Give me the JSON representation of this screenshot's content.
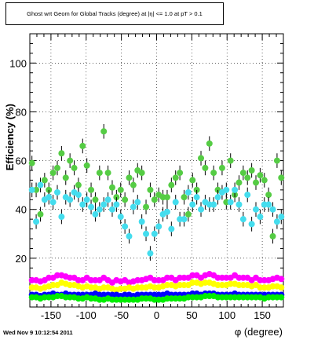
{
  "chart_data": {
    "type": "scatter",
    "title": "Ghost wrt Geom for Global Tracks (degree) at |η| <= 1.0 at pT > 0.1",
    "xlabel": "φ (degree)",
    "ylabel": "Efficiency (%)",
    "xlim": [
      -180,
      180
    ],
    "ylim": [
      0,
      112
    ],
    "x_ticks": [
      -150,
      -100,
      -50,
      0,
      50,
      100,
      150
    ],
    "x_tick_labels": [
      "-150",
      "-100",
      "-50",
      "0",
      "50",
      "100",
      "150"
    ],
    "y_ticks": [
      20,
      40,
      60,
      80,
      100
    ],
    "y_tick_labels": [
      "20",
      "40",
      "60",
      "80",
      "100"
    ],
    "grid": true,
    "series": [
      {
        "color": "#55cc44",
        "marker": "circle",
        "x": [
          -177,
          -171,
          -165,
          -159,
          -153,
          -147,
          -141,
          -135,
          -129,
          -123,
          -117,
          -111,
          -105,
          -99,
          -93,
          -87,
          -81,
          -75,
          -69,
          -63,
          -57,
          -51,
          -45,
          -39,
          -33,
          -27,
          -21,
          -15,
          -9,
          -3,
          3,
          9,
          15,
          21,
          27,
          33,
          39,
          45,
          51,
          57,
          63,
          69,
          75,
          81,
          87,
          93,
          99,
          105,
          111,
          117,
          123,
          129,
          135,
          141,
          147,
          153,
          159,
          165,
          171,
          177
        ],
        "y": [
          59,
          48,
          38,
          52,
          48,
          55,
          57,
          63,
          53,
          60,
          57,
          50,
          66,
          58,
          48,
          44,
          55,
          72,
          55,
          49,
          45,
          48,
          44,
          53,
          50,
          56,
          55,
          41,
          48,
          44,
          46,
          45,
          45,
          50,
          53,
          55,
          45,
          38,
          52,
          48,
          61,
          57,
          67,
          55,
          48,
          57,
          43,
          60,
          46,
          51,
          55,
          53,
          56,
          51,
          54,
          52,
          46,
          29,
          60,
          53
        ],
        "yerr": [
          3,
          3,
          3,
          3,
          3,
          3,
          3,
          3,
          3,
          3,
          3,
          3,
          3,
          3,
          3,
          3,
          3,
          3,
          3,
          3,
          3,
          3,
          3,
          3,
          3,
          3,
          3,
          3,
          3,
          3,
          3,
          3,
          3,
          3,
          3,
          3,
          3,
          3,
          3,
          3,
          3,
          3,
          3,
          3,
          3,
          3,
          3,
          3,
          3,
          3,
          3,
          3,
          3,
          3,
          3,
          3,
          3,
          3,
          3,
          3
        ]
      },
      {
        "color": "#44ddee",
        "marker": "circle",
        "x": [
          -177,
          -171,
          -165,
          -159,
          -153,
          -147,
          -141,
          -135,
          -129,
          -123,
          -117,
          -111,
          -105,
          -99,
          -93,
          -87,
          -81,
          -75,
          -69,
          -63,
          -57,
          -51,
          -45,
          -39,
          -33,
          -27,
          -21,
          -15,
          -9,
          -3,
          3,
          9,
          15,
          21,
          27,
          33,
          39,
          45,
          51,
          57,
          63,
          69,
          75,
          81,
          87,
          93,
          99,
          105,
          111,
          117,
          123,
          129,
          135,
          141,
          147,
          153,
          159,
          165,
          171,
          177
        ],
        "y": [
          48,
          35,
          50,
          44,
          45,
          43,
          47,
          37,
          45,
          44,
          47,
          46,
          42,
          44,
          41,
          38,
          40,
          42,
          44,
          40,
          42,
          37,
          33,
          29,
          41,
          43,
          35,
          30,
          22,
          30,
          33,
          38,
          39,
          32,
          43,
          36,
          36,
          47,
          42,
          45,
          40,
          43,
          42,
          42,
          45,
          47,
          48,
          43,
          48,
          42,
          36,
          46,
          34,
          40,
          37,
          42,
          42,
          40,
          35,
          37
        ],
        "yerr": [
          3,
          3,
          3,
          3,
          3,
          3,
          3,
          3,
          3,
          3,
          3,
          3,
          3,
          3,
          3,
          3,
          3,
          3,
          3,
          3,
          3,
          3,
          3,
          3,
          3,
          3,
          3,
          3,
          3,
          3,
          3,
          3,
          3,
          3,
          3,
          3,
          3,
          3,
          3,
          3,
          3,
          3,
          3,
          3,
          3,
          3,
          3,
          3,
          3,
          3,
          3,
          3,
          3,
          3,
          3,
          3,
          3,
          3,
          3,
          3
        ]
      },
      {
        "color": "#ff00ff",
        "marker": "circle",
        "x": [
          -177,
          -171,
          -165,
          -159,
          -153,
          -147,
          -141,
          -135,
          -129,
          -123,
          -117,
          -111,
          -105,
          -99,
          -93,
          -87,
          -81,
          -75,
          -69,
          -63,
          -57,
          -51,
          -45,
          -39,
          -33,
          -27,
          -21,
          -15,
          -9,
          -3,
          3,
          9,
          15,
          21,
          27,
          33,
          39,
          45,
          51,
          57,
          63,
          69,
          75,
          81,
          87,
          93,
          99,
          105,
          111,
          117,
          123,
          129,
          135,
          141,
          147,
          153,
          159,
          165,
          171,
          177
        ],
        "y": [
          11,
          11,
          10.5,
          11,
          12,
          12,
          13,
          13,
          12.5,
          12,
          12,
          11,
          11,
          12,
          11,
          11,
          11,
          12,
          11,
          10,
          11,
          10.5,
          11,
          10,
          10.5,
          11,
          11,
          11.5,
          12,
          11,
          11,
          11,
          12,
          12,
          11,
          12,
          12,
          12,
          13,
          13,
          12,
          13,
          13.5,
          13,
          12,
          12,
          12,
          12,
          13,
          12,
          12,
          12,
          11,
          12,
          11,
          11,
          11,
          11.5,
          12,
          11.5
        ],
        "yerr": [
          0.6,
          0.6,
          0.6,
          0.6,
          0.6,
          0.6,
          0.6,
          0.6,
          0.6,
          0.6,
          0.6,
          0.6,
          0.6,
          0.6,
          0.6,
          0.6,
          0.6,
          0.6,
          0.6,
          0.6,
          0.6,
          0.6,
          0.6,
          0.6,
          0.6,
          0.6,
          0.6,
          0.6,
          0.6,
          0.6,
          0.6,
          0.6,
          0.6,
          0.6,
          0.6,
          0.6,
          0.6,
          0.6,
          0.6,
          0.6,
          0.6,
          0.6,
          0.6,
          0.6,
          0.6,
          0.6,
          0.6,
          0.6,
          0.6,
          0.6,
          0.6,
          0.6,
          0.6,
          0.6,
          0.6,
          0.6,
          0.6,
          0.6,
          0.6,
          0.6
        ]
      },
      {
        "color": "#ffff00",
        "marker": "circle",
        "x": [
          -177,
          -171,
          -165,
          -159,
          -153,
          -147,
          -141,
          -135,
          -129,
          -123,
          -117,
          -111,
          -105,
          -99,
          -93,
          -87,
          -81,
          -75,
          -69,
          -63,
          -57,
          -51,
          -45,
          -39,
          -33,
          -27,
          -21,
          -15,
          -9,
          -3,
          3,
          9,
          15,
          21,
          27,
          33,
          39,
          45,
          51,
          57,
          63,
          69,
          75,
          81,
          87,
          93,
          99,
          105,
          111,
          117,
          123,
          129,
          135,
          141,
          147,
          153,
          159,
          165,
          171,
          177
        ],
        "y": [
          8,
          8,
          7.5,
          8,
          8.5,
          9,
          9,
          10,
          9.5,
          9,
          9,
          8.5,
          8,
          8.5,
          8,
          8,
          7.5,
          8,
          8,
          7.5,
          7,
          7.5,
          7.5,
          8,
          7.5,
          8,
          8,
          8,
          8.5,
          8,
          8,
          8.5,
          9,
          9,
          8.5,
          9,
          9,
          9,
          10,
          10,
          9.5,
          10,
          10,
          9.5,
          9,
          9,
          9,
          9.5,
          9.5,
          9,
          9,
          9,
          8.5,
          9,
          8,
          8,
          8,
          8.5,
          8.5,
          8
        ],
        "yerr": [
          0.6,
          0.6,
          0.6,
          0.6,
          0.6,
          0.6,
          0.6,
          0.6,
          0.6,
          0.6,
          0.6,
          0.6,
          0.6,
          0.6,
          0.6,
          0.6,
          0.6,
          0.6,
          0.6,
          0.6,
          0.6,
          0.6,
          0.6,
          0.6,
          0.6,
          0.6,
          0.6,
          0.6,
          0.6,
          0.6,
          0.6,
          0.6,
          0.6,
          0.6,
          0.6,
          0.6,
          0.6,
          0.6,
          0.6,
          0.6,
          0.6,
          0.6,
          0.6,
          0.6,
          0.6,
          0.6,
          0.6,
          0.6,
          0.6,
          0.6,
          0.6,
          0.6,
          0.6,
          0.6,
          0.6,
          0.6,
          0.6,
          0.6,
          0.6,
          0.6
        ]
      },
      {
        "color": "#0000ff",
        "marker": "circle",
        "x": [
          -177,
          -171,
          -165,
          -159,
          -153,
          -147,
          -141,
          -135,
          -129,
          -123,
          -117,
          -111,
          -105,
          -99,
          -93,
          -87,
          -81,
          -75,
          -69,
          -63,
          -57,
          -51,
          -45,
          -39,
          -33,
          -27,
          -21,
          -15,
          -9,
          -3,
          3,
          9,
          15,
          21,
          27,
          33,
          39,
          45,
          51,
          57,
          63,
          69,
          75,
          81,
          87,
          93,
          99,
          105,
          111,
          117,
          123,
          129,
          135,
          141,
          147,
          153,
          159,
          165,
          171,
          177
        ],
        "y": [
          5,
          5,
          4.5,
          5,
          5,
          5.5,
          5,
          5,
          5.5,
          5,
          5,
          5,
          5,
          5,
          5,
          5.5,
          5,
          5,
          5,
          5,
          5,
          4.5,
          5,
          5,
          4.5,
          5,
          5,
          5,
          5,
          5,
          5,
          5,
          5.5,
          5,
          5,
          5,
          5,
          5,
          5.5,
          5.5,
          5,
          5.5,
          5.5,
          5.5,
          5,
          5,
          5,
          5,
          5.5,
          5,
          5,
          5,
          5,
          5,
          5,
          5,
          5,
          5,
          5,
          5
        ],
        "yerr": [
          0.5,
          0.5,
          0.5,
          0.5,
          0.5,
          0.5,
          0.5,
          0.5,
          0.5,
          0.5,
          0.5,
          0.5,
          0.5,
          0.5,
          0.5,
          0.5,
          0.5,
          0.5,
          0.5,
          0.5,
          0.5,
          0.5,
          0.5,
          0.5,
          0.5,
          0.5,
          0.5,
          0.5,
          0.5,
          0.5,
          0.5,
          0.5,
          0.5,
          0.5,
          0.5,
          0.5,
          0.5,
          0.5,
          0.5,
          0.5,
          0.5,
          0.5,
          0.5,
          0.5,
          0.5,
          0.5,
          0.5,
          0.5,
          0.5,
          0.5,
          0.5,
          0.5,
          0.5,
          0.5,
          0.5,
          0.5,
          0.5,
          0.5,
          0.5,
          0.5
        ]
      },
      {
        "color": "#00ee00",
        "marker": "circle",
        "x": [
          -177,
          -171,
          -165,
          -159,
          -153,
          -147,
          -141,
          -135,
          -129,
          -123,
          -117,
          -111,
          -105,
          -99,
          -93,
          -87,
          -81,
          -75,
          -69,
          -63,
          -57,
          -51,
          -45,
          -39,
          -33,
          -27,
          -21,
          -15,
          -9,
          -3,
          3,
          9,
          15,
          21,
          27,
          33,
          39,
          45,
          51,
          57,
          63,
          69,
          75,
          81,
          87,
          93,
          99,
          105,
          111,
          117,
          123,
          129,
          135,
          141,
          147,
          153,
          159,
          165,
          171,
          177
        ],
        "y": [
          4,
          4,
          3.5,
          4,
          4,
          4,
          4.5,
          4.5,
          4,
          4,
          4,
          3.5,
          3.5,
          4,
          3.5,
          3.5,
          3,
          3,
          3.5,
          3,
          3,
          3,
          3,
          3,
          3,
          3,
          3.5,
          3.5,
          3.5,
          3,
          3,
          3,
          3.5,
          3.5,
          3.5,
          3.5,
          3.5,
          4,
          4,
          4,
          4,
          4.5,
          4.5,
          4.5,
          4,
          4,
          4,
          4,
          4,
          4,
          4,
          4,
          4,
          4,
          4,
          3.5,
          4,
          4,
          4,
          4
        ],
        "yerr": [
          0.4,
          0.4,
          0.4,
          0.4,
          0.4,
          0.4,
          0.4,
          0.4,
          0.4,
          0.4,
          0.4,
          0.4,
          0.4,
          0.4,
          0.4,
          0.4,
          0.4,
          0.4,
          0.4,
          0.4,
          0.4,
          0.4,
          0.4,
          0.4,
          0.4,
          0.4,
          0.4,
          0.4,
          0.4,
          0.4,
          0.4,
          0.4,
          0.4,
          0.4,
          0.4,
          0.4,
          0.4,
          0.4,
          0.4,
          0.4,
          0.4,
          0.4,
          0.4,
          0.4,
          0.4,
          0.4,
          0.4,
          0.4,
          0.4,
          0.4,
          0.4,
          0.4,
          0.4,
          0.4,
          0.4,
          0.4,
          0.4,
          0.4,
          0.4,
          0.4
        ]
      }
    ]
  },
  "timestamp": "Wed Nov  9 10:12:54 2011"
}
